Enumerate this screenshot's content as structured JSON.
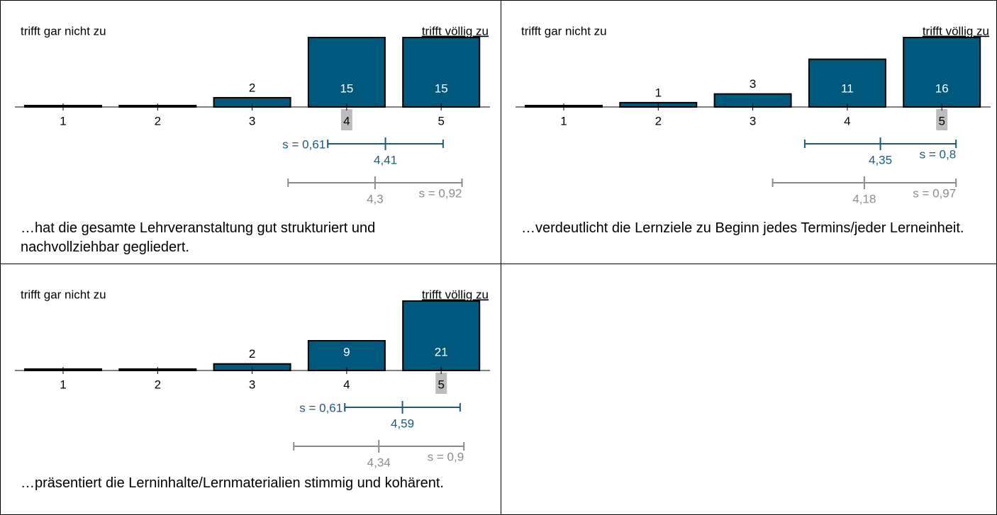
{
  "chart_data": [
    {
      "type": "bar",
      "left_label": "trifft gar nicht zu",
      "right_label": "trifft völlig zu",
      "categories": [
        "1",
        "2",
        "3",
        "4",
        "5"
      ],
      "values": [
        0,
        0,
        2,
        15,
        15
      ],
      "color": "#00587c",
      "highlight": "4",
      "mean": {
        "value": 4.41,
        "label": "4,41"
      },
      "sd": {
        "value": 0.61,
        "label": "s = 0,61"
      },
      "line_color": "#1f5b78",
      "comparison_mean": {
        "value": 4.3,
        "label": "4,3"
      },
      "comparison_sd": {
        "value": 0.92,
        "label": "s = 0,92"
      },
      "comparison_color": "#8c8c8c",
      "caption": "…hat die gesamte Lehrveranstaltung gut strukturiert und nachvollziehbar gegliedert."
    },
    {
      "type": "bar",
      "left_label": "trifft gar nicht zu",
      "right_label": "trifft völlig zu",
      "categories": [
        "1",
        "2",
        "3",
        "4",
        "5"
      ],
      "values": [
        0,
        1,
        3,
        11,
        16
      ],
      "color": "#00587c",
      "highlight": "5",
      "mean": {
        "value": 4.35,
        "label": "4,35"
      },
      "sd": {
        "value": 0.8,
        "label": "s = 0,8"
      },
      "line_color": "#1f5b78",
      "comparison_mean": {
        "value": 4.18,
        "label": "4,18"
      },
      "comparison_sd": {
        "value": 0.97,
        "label": "s = 0,97"
      },
      "comparison_color": "#8c8c8c",
      "caption": "…verdeutlicht die Lernziele zu Beginn jedes Termins/jeder Lerneinheit."
    },
    {
      "type": "bar",
      "left_label": "trifft gar nicht zu",
      "right_label": "trifft völlig zu",
      "categories": [
        "1",
        "2",
        "3",
        "4",
        "5"
      ],
      "values": [
        0,
        0,
        2,
        9,
        21
      ],
      "color": "#00587c",
      "highlight": "5",
      "mean": {
        "value": 4.59,
        "label": "4,59"
      },
      "sd": {
        "value": 0.61,
        "label": "s = 0,61"
      },
      "line_color": "#1f5b78",
      "comparison_mean": {
        "value": 4.34,
        "label": "4,34"
      },
      "comparison_sd": {
        "value": 0.9,
        "label": "s = 0,9"
      },
      "comparison_color": "#8c8c8c",
      "caption": "…präsentiert die Lerninhalte/Lernmaterialien stimmig und kohärent."
    }
  ]
}
